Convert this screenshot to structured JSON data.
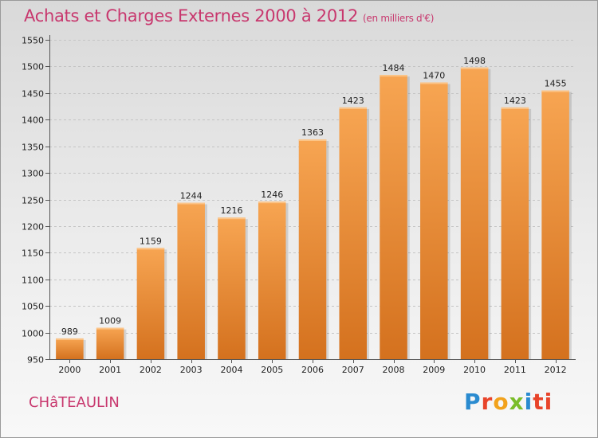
{
  "title": "Achats et Charges Externes 2000 à 2012",
  "subtitle": "(en milliers d'€)",
  "city": "CHâTEAULIN",
  "logo_letters": [
    "P",
    "r",
    "o",
    "x",
    "i",
    "ti"
  ],
  "colors": {
    "title": "#c8386e",
    "bar_top": "#f7a552",
    "bar_bottom": "#d4711e"
  },
  "chart_data": {
    "type": "bar",
    "title": "Achats et Charges Externes 2000 à 2012",
    "categories": [
      "2000",
      "2001",
      "2002",
      "2003",
      "2004",
      "2005",
      "2006",
      "2007",
      "2008",
      "2009",
      "2010",
      "2011",
      "2012"
    ],
    "values": [
      989,
      1009,
      1159,
      1244,
      1216,
      1246,
      1363,
      1423,
      1484,
      1470,
      1498,
      1423,
      1455
    ],
    "ylim": [
      950,
      1550
    ],
    "yticks": [
      950,
      1000,
      1050,
      1100,
      1150,
      1200,
      1250,
      1300,
      1350,
      1400,
      1450,
      1500,
      1550
    ],
    "grid": true,
    "xlabel": "",
    "ylabel": ""
  }
}
